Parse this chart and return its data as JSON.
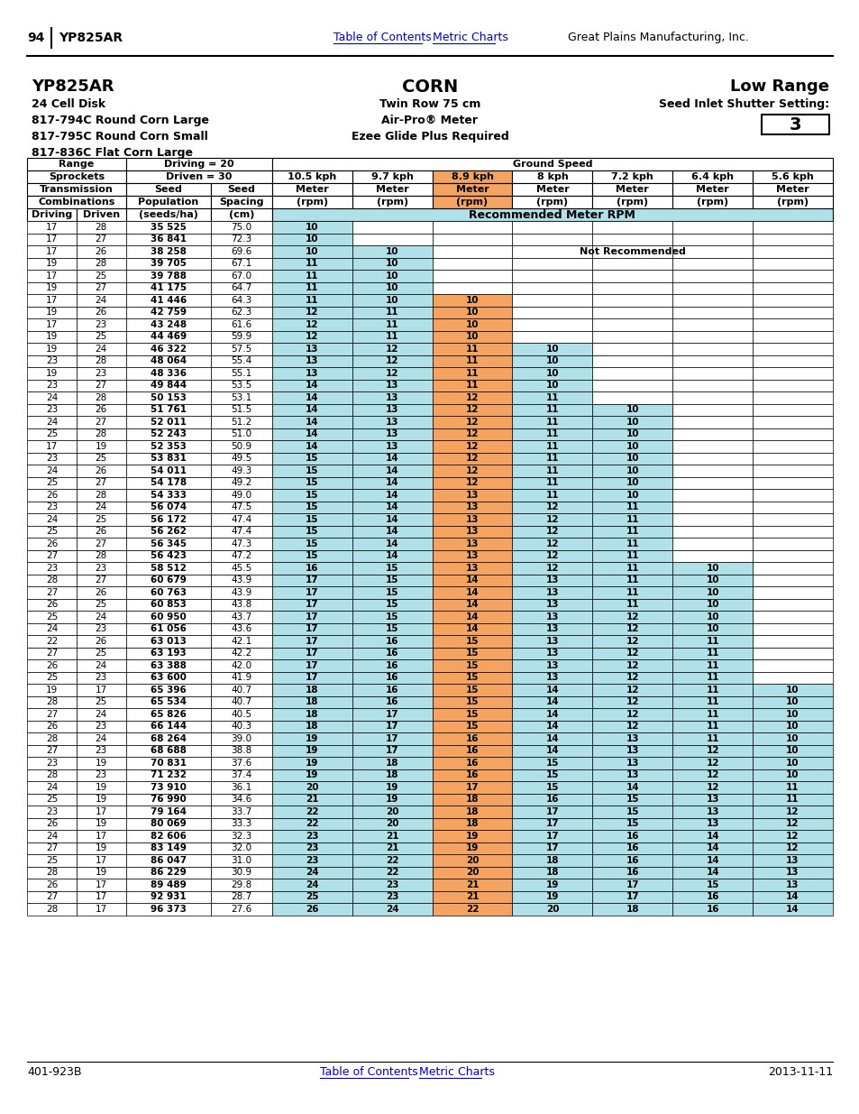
{
  "page_number": "94",
  "model": "YP825AR",
  "title_center": "CORN",
  "title_right": "Low Range",
  "subtitle_left": [
    "24 Cell Disk",
    "817-794C Round Corn Large",
    "817-795C Round Corn Small",
    "817-836C Flat Corn Large"
  ],
  "subtitle_center": [
    "Twin Row 75 cm",
    "Air-Pro® Meter",
    "Ezee Glide Plus Required"
  ],
  "subtitle_right": [
    "Seed Inlet Shutter Setting:",
    "3"
  ],
  "range_driving": "20",
  "range_driven": "30",
  "speed_headers": [
    "10.5 kph",
    "9.7 kph",
    "8.9 kph",
    "8 kph",
    "7.2 kph",
    "6.4 kph",
    "5.6 kph"
  ],
  "highlight_color": "#F4A460",
  "rec_color": "#B0E0E8",
  "table_data": [
    [
      17,
      28,
      "35 525",
      75.0,
      10,
      "",
      "",
      "",
      "",
      "",
      ""
    ],
    [
      17,
      27,
      "36 841",
      72.3,
      10,
      "",
      "",
      "",
      "",
      "",
      ""
    ],
    [
      17,
      26,
      "38 258",
      69.6,
      10,
      10,
      "",
      "",
      "",
      "",
      ""
    ],
    [
      19,
      28,
      "39 705",
      67.1,
      11,
      10,
      "",
      "",
      "",
      "",
      ""
    ],
    [
      17,
      25,
      "39 788",
      67.0,
      11,
      10,
      "",
      "",
      "",
      "",
      ""
    ],
    [
      19,
      27,
      "41 175",
      64.7,
      11,
      10,
      "",
      "",
      "",
      "",
      ""
    ],
    [
      17,
      24,
      "41 446",
      64.3,
      11,
      10,
      10,
      "",
      "",
      "",
      ""
    ],
    [
      19,
      26,
      "42 759",
      62.3,
      12,
      11,
      10,
      "",
      "",
      "",
      ""
    ],
    [
      17,
      23,
      "43 248",
      61.6,
      12,
      11,
      10,
      "",
      "",
      "",
      ""
    ],
    [
      19,
      25,
      "44 469",
      59.9,
      12,
      11,
      10,
      "",
      "",
      "",
      ""
    ],
    [
      19,
      24,
      "46 322",
      57.5,
      13,
      12,
      11,
      10,
      "",
      "",
      ""
    ],
    [
      23,
      28,
      "48 064",
      55.4,
      13,
      12,
      11,
      10,
      "",
      "",
      ""
    ],
    [
      19,
      23,
      "48 336",
      55.1,
      13,
      12,
      11,
      10,
      "",
      "",
      ""
    ],
    [
      23,
      27,
      "49 844",
      53.5,
      14,
      13,
      11,
      10,
      "",
      "",
      ""
    ],
    [
      24,
      28,
      "50 153",
      53.1,
      14,
      13,
      12,
      11,
      "",
      "",
      ""
    ],
    [
      23,
      26,
      "51 761",
      51.5,
      14,
      13,
      12,
      11,
      10,
      "",
      ""
    ],
    [
      24,
      27,
      "52 011",
      51.2,
      14,
      13,
      12,
      11,
      10,
      "",
      ""
    ],
    [
      25,
      28,
      "52 243",
      51.0,
      14,
      13,
      12,
      11,
      10,
      "",
      ""
    ],
    [
      17,
      19,
      "52 353",
      50.9,
      14,
      13,
      12,
      11,
      10,
      "",
      ""
    ],
    [
      23,
      25,
      "53 831",
      49.5,
      15,
      14,
      12,
      11,
      10,
      "",
      ""
    ],
    [
      24,
      26,
      "54 011",
      49.3,
      15,
      14,
      12,
      11,
      10,
      "",
      ""
    ],
    [
      25,
      27,
      "54 178",
      49.2,
      15,
      14,
      12,
      11,
      10,
      "",
      ""
    ],
    [
      26,
      28,
      "54 333",
      49.0,
      15,
      14,
      13,
      11,
      10,
      "",
      ""
    ],
    [
      23,
      24,
      "56 074",
      47.5,
      15,
      14,
      13,
      12,
      11,
      "",
      ""
    ],
    [
      24,
      25,
      "56 172",
      47.4,
      15,
      14,
      13,
      12,
      11,
      "",
      ""
    ],
    [
      25,
      26,
      "56 262",
      47.4,
      15,
      14,
      13,
      12,
      11,
      "",
      ""
    ],
    [
      26,
      27,
      "56 345",
      47.3,
      15,
      14,
      13,
      12,
      11,
      "",
      ""
    ],
    [
      27,
      28,
      "56 423",
      47.2,
      15,
      14,
      13,
      12,
      11,
      "",
      ""
    ],
    [
      23,
      23,
      "58 512",
      45.5,
      16,
      15,
      13,
      12,
      11,
      10,
      ""
    ],
    [
      28,
      27,
      "60 679",
      43.9,
      17,
      15,
      14,
      13,
      11,
      10,
      ""
    ],
    [
      27,
      26,
      "60 763",
      43.9,
      17,
      15,
      14,
      13,
      11,
      10,
      ""
    ],
    [
      26,
      25,
      "60 853",
      43.8,
      17,
      15,
      14,
      13,
      11,
      10,
      ""
    ],
    [
      25,
      24,
      "60 950",
      43.7,
      17,
      15,
      14,
      13,
      12,
      10,
      ""
    ],
    [
      24,
      23,
      "61 056",
      43.6,
      17,
      15,
      14,
      13,
      12,
      10,
      ""
    ],
    [
      22,
      26,
      "63 013",
      42.1,
      17,
      16,
      15,
      13,
      12,
      11,
      ""
    ],
    [
      27,
      25,
      "63 193",
      42.2,
      17,
      16,
      15,
      13,
      12,
      11,
      ""
    ],
    [
      26,
      24,
      "63 388",
      42.0,
      17,
      16,
      15,
      13,
      12,
      11,
      ""
    ],
    [
      25,
      23,
      "63 600",
      41.9,
      17,
      16,
      15,
      13,
      12,
      11,
      ""
    ],
    [
      19,
      17,
      "65 396",
      40.7,
      18,
      16,
      15,
      14,
      12,
      11,
      10
    ],
    [
      28,
      25,
      "65 534",
      40.7,
      18,
      16,
      15,
      14,
      12,
      11,
      10
    ],
    [
      27,
      24,
      "65 826",
      40.5,
      18,
      17,
      15,
      14,
      12,
      11,
      10
    ],
    [
      26,
      23,
      "66 144",
      40.3,
      18,
      17,
      15,
      14,
      12,
      11,
      10
    ],
    [
      28,
      24,
      "68 264",
      39.0,
      19,
      17,
      16,
      14,
      13,
      11,
      10
    ],
    [
      27,
      23,
      "68 688",
      38.8,
      19,
      17,
      16,
      14,
      13,
      12,
      10
    ],
    [
      23,
      19,
      "70 831",
      37.6,
      19,
      18,
      16,
      15,
      13,
      12,
      10
    ],
    [
      28,
      23,
      "71 232",
      37.4,
      19,
      18,
      16,
      15,
      13,
      12,
      10
    ],
    [
      24,
      19,
      "73 910",
      36.1,
      20,
      19,
      17,
      15,
      14,
      12,
      11
    ],
    [
      25,
      19,
      "76 990",
      34.6,
      21,
      19,
      18,
      16,
      15,
      13,
      11
    ],
    [
      23,
      17,
      "79 164",
      33.7,
      22,
      20,
      18,
      17,
      15,
      13,
      12
    ],
    [
      26,
      19,
      "80 069",
      33.3,
      22,
      20,
      18,
      17,
      15,
      13,
      12
    ],
    [
      24,
      17,
      "82 606",
      32.3,
      23,
      21,
      19,
      17,
      16,
      14,
      12
    ],
    [
      27,
      19,
      "83 149",
      32.0,
      23,
      21,
      19,
      17,
      16,
      14,
      12
    ],
    [
      25,
      17,
      "86 047",
      31.0,
      23,
      22,
      20,
      18,
      16,
      14,
      13
    ],
    [
      28,
      19,
      "86 229",
      30.9,
      24,
      22,
      20,
      18,
      16,
      14,
      13
    ],
    [
      26,
      17,
      "89 489",
      29.8,
      24,
      23,
      21,
      19,
      17,
      15,
      13
    ],
    [
      27,
      17,
      "92 931",
      28.7,
      25,
      23,
      21,
      19,
      17,
      16,
      14
    ],
    [
      28,
      17,
      "96 373",
      27.6,
      26,
      24,
      22,
      20,
      18,
      16,
      14
    ]
  ],
  "not_recommended_text": "Not Recommended",
  "footer_left": "401-923B",
  "footer_center_links": [
    "Table of Contents",
    "Metric Charts"
  ],
  "footer_right": "2013-11-11",
  "header_link_color": "#0000CD",
  "bg_color": "#FFFFFF"
}
